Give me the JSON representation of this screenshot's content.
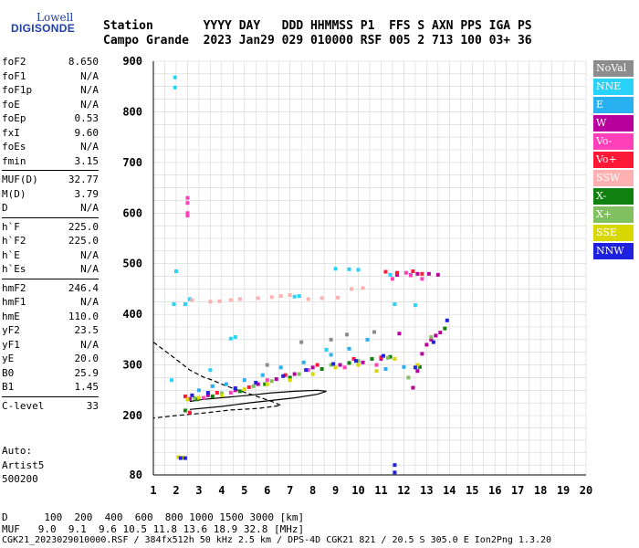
{
  "logo": {
    "top": "Lowell",
    "bottom": "DIGISONDE"
  },
  "header": {
    "row1": "Station       YYYY DAY   DDD HHMMSS P1  FFS S AXN PPS IGA PS",
    "row2": "Campo Grande  2023 Jan29 029 010000 RSF 005 2 713 100 03+ 36"
  },
  "params": [
    {
      "k": "foF2",
      "v": "8.650"
    },
    {
      "k": "foF1",
      "v": "N/A"
    },
    {
      "k": "foF1p",
      "v": "N/A"
    },
    {
      "k": "foE",
      "v": "N/A"
    },
    {
      "k": "foEp",
      "v": "0.53"
    },
    {
      "k": "fxI",
      "v": "9.60"
    },
    {
      "k": "foEs",
      "v": "N/A"
    },
    {
      "k": "fmin",
      "v": "3.15"
    },
    {
      "sep": true
    },
    {
      "k": "MUF(D)",
      "v": "32.77"
    },
    {
      "k": "M(D)",
      "v": "3.79"
    },
    {
      "k": "D",
      "v": "N/A"
    },
    {
      "sep": true
    },
    {
      "k": "h`F",
      "v": "225.0"
    },
    {
      "k": "h`F2",
      "v": "225.0"
    },
    {
      "k": "h`E",
      "v": "N/A"
    },
    {
      "k": "h`Es",
      "v": "N/A"
    },
    {
      "sep": true
    },
    {
      "k": "hmF2",
      "v": "246.4"
    },
    {
      "k": "hmF1",
      "v": "N/A"
    },
    {
      "k": "hmE",
      "v": "110.0"
    },
    {
      "k": "yF2",
      "v": "23.5"
    },
    {
      "k": "yF1",
      "v": "N/A"
    },
    {
      "k": "yE",
      "v": "20.0"
    },
    {
      "k": "B0",
      "v": "25.9"
    },
    {
      "k": "B1",
      "v": "1.45"
    },
    {
      "sep": true
    },
    {
      "k": "C-level",
      "v": "33"
    }
  ],
  "auto": {
    "line1": "Auto:",
    "line2": "Artist5",
    "line3": "500200"
  },
  "legend": [
    {
      "label": "NoVal",
      "color": "#8c8c8c"
    },
    {
      "label": "NNE",
      "color": "#28d2f8"
    },
    {
      "label": "E",
      "color": "#28b0f0"
    },
    {
      "label": "W",
      "color": "#b8009c"
    },
    {
      "label": "Vo-",
      "color": "#ff40b8"
    },
    {
      "label": "Vo+",
      "color": "#ff1838"
    },
    {
      "label": "SSW",
      "color": "#ffb0b0"
    },
    {
      "label": "X-",
      "color": "#108010"
    },
    {
      "label": "X+",
      "color": "#80c060"
    },
    {
      "label": "SSE",
      "color": "#d8d800"
    },
    {
      "label": "NNW",
      "color": "#2020e0"
    }
  ],
  "footer": {
    "line1": "D      100  200  400  600  800 1000 1500 3000 [km]",
    "line2": "MUF   9.0  9.1  9.6 10.5 11.8 13.6 18.9 32.8 [MHz]",
    "line3": "CGK21_2023029010000.RSF / 384fx512h 50 kHz 2.5 km / DPS-4D CGK21 821 / 20.5 S 305.0 E Ion2Png 1.3.20"
  },
  "chart_data": {
    "type": "scatter",
    "title": "",
    "xlabel": "",
    "ylabel": "",
    "xlim": [
      1,
      20
    ],
    "ylim": [
      80,
      900
    ],
    "xticks": [
      1,
      2,
      3,
      4,
      5,
      6,
      7,
      8,
      9,
      10,
      11,
      12,
      13,
      14,
      15,
      16,
      17,
      18,
      19,
      20
    ],
    "yticks": [
      80,
      200,
      300,
      400,
      500,
      600,
      700,
      800,
      900
    ],
    "grid": true,
    "series": [
      {
        "name": "NNE",
        "color": "#28d2f8",
        "points": [
          [
            1.95,
            868
          ],
          [
            1.95,
            848
          ],
          [
            2.4,
            420
          ],
          [
            2.6,
            430
          ],
          [
            1.9,
            420
          ],
          [
            2.0,
            485
          ],
          [
            1.8,
            270
          ],
          [
            3.5,
            290
          ],
          [
            4.4,
            352
          ],
          [
            4.6,
            355
          ],
          [
            9.0,
            490
          ],
          [
            9.6,
            489
          ],
          [
            10.0,
            488
          ],
          [
            11.4,
            478
          ],
          [
            11.6,
            420
          ],
          [
            12.5,
            418
          ],
          [
            7.2,
            435
          ],
          [
            7.4,
            436
          ],
          [
            8.6,
            330
          ]
        ]
      },
      {
        "name": "E",
        "color": "#28b0f0",
        "points": [
          [
            3.0,
            250
          ],
          [
            3.6,
            258
          ],
          [
            4.2,
            262
          ],
          [
            5.0,
            270
          ],
          [
            5.8,
            280
          ],
          [
            6.6,
            295
          ],
          [
            7.6,
            305
          ],
          [
            8.8,
            320
          ],
          [
            9.6,
            332
          ],
          [
            10.4,
            350
          ],
          [
            11.2,
            292
          ],
          [
            12.0,
            296
          ],
          [
            12.3,
            478
          ]
        ]
      },
      {
        "name": "W",
        "color": "#b8009c",
        "points": [
          [
            2.6,
            233
          ],
          [
            3.4,
            240
          ],
          [
            4.6,
            250
          ],
          [
            5.6,
            262
          ],
          [
            6.4,
            272
          ],
          [
            7.2,
            282
          ],
          [
            8.0,
            295
          ],
          [
            9.2,
            300
          ],
          [
            10.2,
            305
          ],
          [
            11.0,
            312
          ],
          [
            11.8,
            362
          ],
          [
            12.4,
            255
          ],
          [
            12.6,
            288
          ],
          [
            12.8,
            322
          ],
          [
            13.0,
            340
          ],
          [
            13.2,
            350
          ],
          [
            13.4,
            358
          ],
          [
            13.6,
            364
          ],
          [
            11.7,
            478
          ],
          [
            12.6,
            480
          ],
          [
            13.1,
            480
          ],
          [
            13.5,
            478
          ]
        ]
      },
      {
        "name": "Vo-",
        "color": "#ff40b8",
        "points": [
          [
            2.5,
            600
          ],
          [
            2.5,
            620
          ],
          [
            2.5,
            630
          ],
          [
            2.5,
            595
          ],
          [
            3.2,
            235
          ],
          [
            4.4,
            245
          ],
          [
            6.0,
            270
          ],
          [
            7.8,
            290
          ],
          [
            9.4,
            295
          ],
          [
            10.8,
            300
          ],
          [
            11.5,
            470
          ],
          [
            12.1,
            482
          ],
          [
            12.3,
            477
          ],
          [
            12.8,
            470
          ]
        ]
      },
      {
        "name": "Vo+",
        "color": "#ff1838",
        "points": [
          [
            2.4,
            238
          ],
          [
            2.6,
            206
          ],
          [
            3.8,
            245
          ],
          [
            5.2,
            256
          ],
          [
            6.8,
            280
          ],
          [
            8.2,
            300
          ],
          [
            9.8,
            312
          ],
          [
            11.0,
            315
          ],
          [
            11.2,
            484
          ],
          [
            11.7,
            482
          ],
          [
            12.4,
            485
          ],
          [
            12.8,
            480
          ]
        ]
      },
      {
        "name": "SSW",
        "color": "#ffb0b0",
        "points": [
          [
            2.7,
            428
          ],
          [
            3.5,
            425
          ],
          [
            3.9,
            426
          ],
          [
            4.4,
            428
          ],
          [
            4.8,
            430
          ],
          [
            5.6,
            432
          ],
          [
            6.2,
            434
          ],
          [
            6.6,
            436
          ],
          [
            7.0,
            438
          ],
          [
            7.8,
            430
          ],
          [
            8.4,
            432
          ],
          [
            9.1,
            433
          ],
          [
            9.7,
            450
          ],
          [
            10.2,
            452
          ]
        ]
      },
      {
        "name": "X-",
        "color": "#108010",
        "points": [
          [
            2.4,
            210
          ],
          [
            2.9,
            232
          ],
          [
            3.6,
            238
          ],
          [
            4.8,
            248
          ],
          [
            5.9,
            262
          ],
          [
            7.0,
            275
          ],
          [
            8.4,
            292
          ],
          [
            9.6,
            304
          ],
          [
            10.6,
            312
          ],
          [
            11.4,
            316
          ],
          [
            12.7,
            296
          ],
          [
            13.8,
            372
          ]
        ]
      },
      {
        "name": "X+",
        "color": "#80c060",
        "points": [
          [
            2.8,
            235
          ],
          [
            4.0,
            244
          ],
          [
            5.4,
            258
          ],
          [
            6.2,
            268
          ],
          [
            7.4,
            282
          ],
          [
            8.8,
            300
          ],
          [
            10.0,
            308
          ],
          [
            11.3,
            314
          ],
          [
            12.2,
            275
          ],
          [
            13.2,
            355
          ]
        ]
      },
      {
        "name": "SSE",
        "color": "#d8d800",
        "points": [
          [
            2.1,
            116
          ],
          [
            2.3,
            115
          ],
          [
            2.5,
            232
          ],
          [
            3.0,
            235
          ],
          [
            4.0,
            240
          ],
          [
            5.0,
            252
          ],
          [
            6.0,
            262
          ],
          [
            7.0,
            270
          ],
          [
            8.0,
            282
          ],
          [
            9.0,
            295
          ],
          [
            10.0,
            300
          ],
          [
            10.8,
            288
          ],
          [
            11.6,
            312
          ],
          [
            12.6,
            300
          ]
        ]
      },
      {
        "name": "NNW",
        "color": "#2020e0",
        "points": [
          [
            2.2,
            114
          ],
          [
            2.4,
            114
          ],
          [
            2.7,
            240
          ],
          [
            3.4,
            245
          ],
          [
            4.6,
            254
          ],
          [
            5.5,
            265
          ],
          [
            6.7,
            278
          ],
          [
            7.7,
            290
          ],
          [
            8.9,
            302
          ],
          [
            9.9,
            308
          ],
          [
            11.1,
            318
          ],
          [
            11.6,
            100
          ],
          [
            11.6,
            85
          ],
          [
            12.5,
            295
          ],
          [
            13.3,
            345
          ],
          [
            13.9,
            388
          ]
        ]
      },
      {
        "name": "NoVal",
        "color": "#8c8c8c",
        "points": [
          [
            6.0,
            300
          ],
          [
            7.5,
            345
          ],
          [
            8.8,
            350
          ],
          [
            9.5,
            360
          ],
          [
            10.7,
            365
          ]
        ]
      }
    ],
    "lines": [
      {
        "name": "profile-dashed",
        "style": "dashed",
        "points": [
          [
            1,
            345
          ],
          [
            1.8,
            318
          ],
          [
            2.6,
            290
          ],
          [
            3.2,
            276
          ],
          [
            3.6,
            270
          ],
          [
            4.0,
            262
          ],
          [
            4.6,
            252
          ],
          [
            5.4,
            240
          ],
          [
            6.2,
            228
          ],
          [
            6.6,
            220
          ],
          [
            5.6,
            214
          ],
          [
            4.4,
            211
          ],
          [
            3.0,
            204
          ],
          [
            2.0,
            200
          ],
          [
            1,
            195
          ]
        ]
      },
      {
        "name": "profile-solid",
        "style": "solid",
        "points": [
          [
            2.6,
            212
          ],
          [
            4.0,
            218
          ],
          [
            5.2,
            225
          ],
          [
            6.2,
            230
          ],
          [
            7.2,
            235
          ],
          [
            8.2,
            242
          ],
          [
            8.6,
            248
          ],
          [
            8.2,
            250
          ],
          [
            7.2,
            248
          ],
          [
            6.2,
            245
          ],
          [
            5.2,
            240
          ],
          [
            4.2,
            236
          ],
          [
            3.2,
            232
          ],
          [
            2.6,
            228
          ]
        ]
      }
    ]
  }
}
